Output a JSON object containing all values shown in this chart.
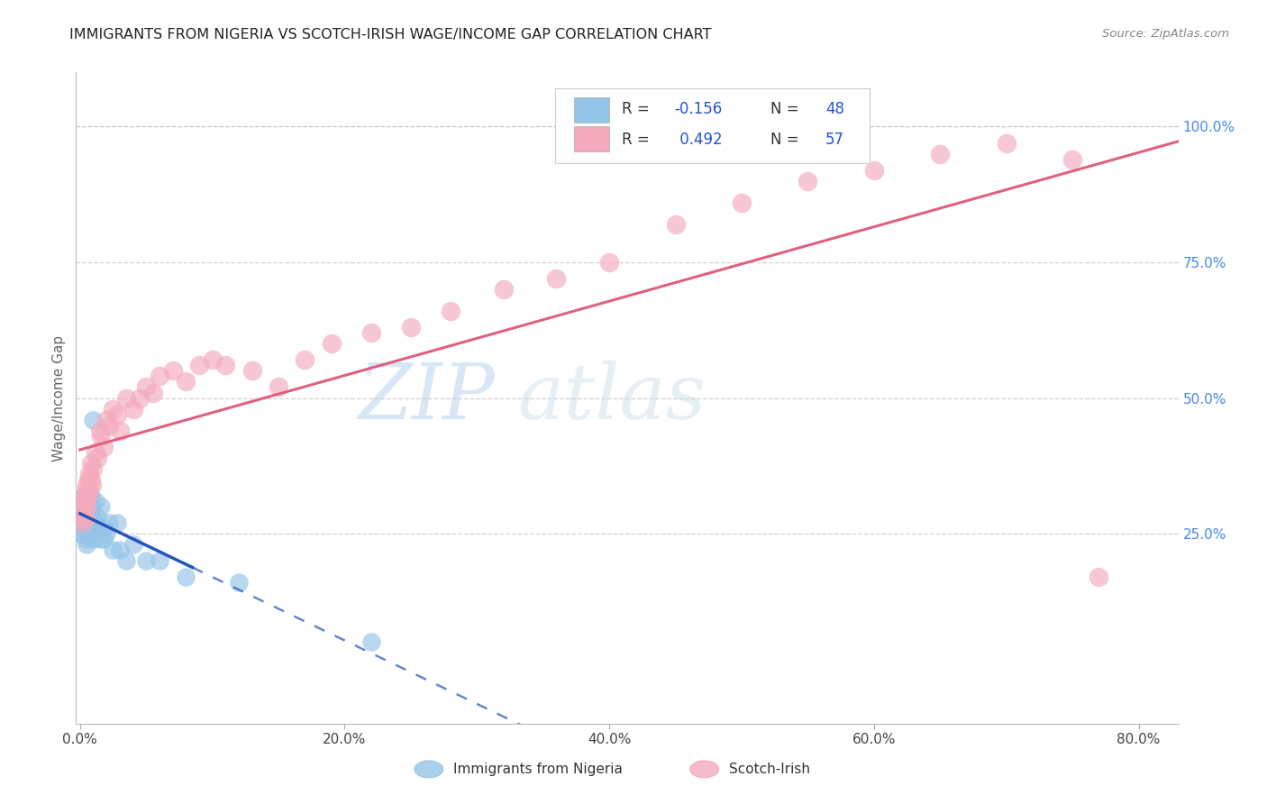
{
  "title": "IMMIGRANTS FROM NIGERIA VS SCOTCH-IRISH WAGE/INCOME GAP CORRELATION CHART",
  "source": "Source: ZipAtlas.com",
  "ylabel": "Wage/Income Gap",
  "x_tick_labels": [
    "0.0%",
    "20.0%",
    "40.0%",
    "60.0%",
    "80.0%"
  ],
  "x_tick_values": [
    0.0,
    0.2,
    0.4,
    0.6,
    0.8
  ],
  "y_tick_labels": [
    "25.0%",
    "50.0%",
    "75.0%",
    "100.0%"
  ],
  "y_tick_values": [
    0.25,
    0.5,
    0.75,
    1.0
  ],
  "xlim": [
    -0.003,
    0.83
  ],
  "ylim": [
    -0.1,
    1.1
  ],
  "r1": -0.156,
  "r2": 0.492,
  "n1": 48,
  "n2": 57,
  "color_blue": "#94C4E8",
  "color_pink": "#F4AABC",
  "color_line_blue": "#2255BB",
  "color_line_pink": "#E06080",
  "background_color": "#ffffff",
  "grid_color": "#cccccc",
  "watermark_zip": "ZIP",
  "watermark_atlas": "atlas",
  "nigeria_x": [
    0.001,
    0.001,
    0.002,
    0.002,
    0.003,
    0.003,
    0.003,
    0.004,
    0.004,
    0.004,
    0.004,
    0.005,
    0.005,
    0.005,
    0.005,
    0.006,
    0.006,
    0.006,
    0.006,
    0.007,
    0.007,
    0.007,
    0.008,
    0.008,
    0.008,
    0.009,
    0.009,
    0.01,
    0.01,
    0.012,
    0.012,
    0.013,
    0.015,
    0.016,
    0.018,
    0.018,
    0.02,
    0.022,
    0.025,
    0.028,
    0.03,
    0.035,
    0.04,
    0.05,
    0.06,
    0.08,
    0.12,
    0.22
  ],
  "nigeria_y": [
    0.28,
    0.25,
    0.3,
    0.27,
    0.32,
    0.28,
    0.26,
    0.29,
    0.31,
    0.27,
    0.24,
    0.3,
    0.28,
    0.26,
    0.23,
    0.29,
    0.32,
    0.27,
    0.25,
    0.28,
    0.31,
    0.26,
    0.29,
    0.32,
    0.27,
    0.3,
    0.28,
    0.46,
    0.24,
    0.31,
    0.27,
    0.28,
    0.24,
    0.3,
    0.26,
    0.24,
    0.25,
    0.27,
    0.22,
    0.27,
    0.22,
    0.2,
    0.23,
    0.2,
    0.2,
    0.17,
    0.16,
    0.05
  ],
  "scotch_x": [
    0.001,
    0.002,
    0.002,
    0.003,
    0.003,
    0.004,
    0.004,
    0.005,
    0.005,
    0.005,
    0.006,
    0.006,
    0.007,
    0.007,
    0.008,
    0.008,
    0.009,
    0.01,
    0.012,
    0.013,
    0.015,
    0.016,
    0.018,
    0.02,
    0.022,
    0.025,
    0.028,
    0.03,
    0.035,
    0.04,
    0.045,
    0.05,
    0.055,
    0.06,
    0.07,
    0.08,
    0.09,
    0.1,
    0.11,
    0.13,
    0.15,
    0.17,
    0.19,
    0.22,
    0.25,
    0.28,
    0.32,
    0.36,
    0.4,
    0.45,
    0.5,
    0.55,
    0.6,
    0.65,
    0.7,
    0.75,
    0.77
  ],
  "scotch_y": [
    0.28,
    0.3,
    0.27,
    0.32,
    0.29,
    0.31,
    0.28,
    0.34,
    0.3,
    0.33,
    0.35,
    0.32,
    0.36,
    0.33,
    0.38,
    0.35,
    0.34,
    0.37,
    0.4,
    0.39,
    0.44,
    0.43,
    0.41,
    0.46,
    0.45,
    0.48,
    0.47,
    0.44,
    0.5,
    0.48,
    0.5,
    0.52,
    0.51,
    0.54,
    0.55,
    0.53,
    0.56,
    0.57,
    0.56,
    0.55,
    0.52,
    0.57,
    0.6,
    0.62,
    0.63,
    0.66,
    0.7,
    0.72,
    0.75,
    0.82,
    0.86,
    0.9,
    0.92,
    0.95,
    0.97,
    0.94,
    0.17
  ]
}
